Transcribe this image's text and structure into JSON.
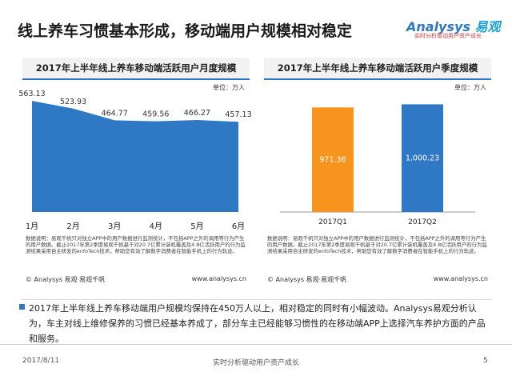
{
  "header": {
    "title": "线上养车习惯基本形成，移动端用户规模相对稳定",
    "brand": "Analysys",
    "brand_cn": "易观",
    "tagline": "实时分析驱动用户资产成长"
  },
  "chart_data": [
    {
      "type": "area",
      "title": "2017年上半年线上养车移动端活跃用户月度规模",
      "unit": "单位：万人",
      "categories": [
        "1月",
        "2月",
        "3月",
        "4月",
        "5月",
        "6月"
      ],
      "values": [
        563.13,
        523.93,
        464.77,
        459.56,
        466.27,
        457.13
      ],
      "color": "#2e78c4",
      "ylim": [
        0,
        600
      ],
      "note": "数据说明：易观千帆只对独立APP中的用户数据进行监测统计，不包括APP之外的调用等行为产生的用户数据。截止2017年第2季度易观千帆基于对20.7亿累计装机覆盖及4.8亿活跃用户的行为监测结果采用自主研发的enfoTech技术，帮助您有效了解数字消费者在智能手机上的行为轨迹。",
      "source": "© Analysys 易观·易观千帆",
      "site": "www.analysys.cn"
    },
    {
      "type": "bar",
      "title": "2017年上半年线上养车移动端活跃用户季度规模",
      "unit": "单位：万人",
      "categories": [
        "2017Q1",
        "2017Q2"
      ],
      "values": [
        971.36,
        1000.23
      ],
      "value_labels": [
        "971.36",
        "1,000.23"
      ],
      "colors": [
        "#f7941d",
        "#2e78c4"
      ],
      "ylim": [
        0,
        1100
      ],
      "note": "数据说明：易观千帆只对独立APP中的用户数据进行监测统计，不包括APP之外的调用等行为产生的用户数据。截止2017年第2季度易观千帆基于对20.7亿累计装机覆盖及4.8亿活跃用户的行为监测结果采用自主研发的enfoTech技术，帮助您有效了解数字消费者在智能手机上的行为轨迹。",
      "source": "© Analysys 易观·易观千帆",
      "site": "www.analysys.cn"
    }
  ],
  "summary": "2017年上半年线上养车移动端用户规模均保持在450万人以上，相对稳定的同时有小幅波动。Analysys易观分析认为，车主对线上维修保养的习惯已经基本养成了，部分车主已经能够习惯性的在移动端APP上选择汽车养护方面的产品和服务。",
  "footer": {
    "date": "2017/8/11",
    "slogan": "实时分析驱动用户资产成长",
    "page": "5"
  }
}
